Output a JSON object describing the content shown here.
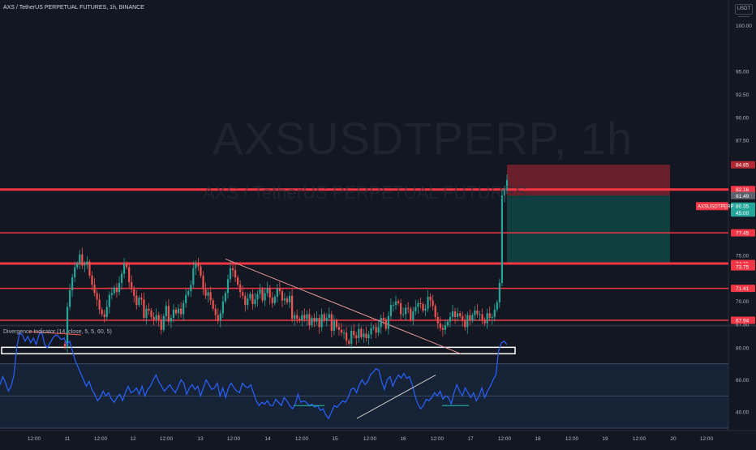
{
  "header": {
    "pair_title": "AXS / TetherUS PERPETUAL FUTURES, 1h, BINANCE",
    "quote_currency": "USDT"
  },
  "watermark": {
    "symbol": "AXSUSDTPERP, 1h",
    "description": "AXS / TetherUS PERPETUAL FUTURES"
  },
  "indicator": {
    "title": "Divergence Indicator (14, close, 5, 5, 60, 5)"
  },
  "symbol_tag": "AXSUSDTPERP",
  "colors": {
    "background": "#131722",
    "up_candle": "#26a69a",
    "down_candle": "#ef5350",
    "resistance_line": "#f23645",
    "trendline": "#ef9a9a",
    "osc_line": "#2962ff",
    "osc_band": "#1e3a5f",
    "stop_zone": "#b22833",
    "target_zone": "#0e5a54",
    "bull_divergence": "#26a69a",
    "bear_divergence": "#ef5350",
    "support_box_border": "#ffffff"
  },
  "chart_data": [
    {
      "type": "candlestick",
      "title": "AXS / TetherUS PERPETUAL FUTURES, 1h, BINANCE",
      "x_ticks": [
        "12:00",
        "11",
        "12:00",
        "12",
        "12:00",
        "13",
        "12:00",
        "14",
        "12:00",
        "15",
        "12:00",
        "16",
        "12:00",
        "17",
        "12:00",
        "18",
        "12:00",
        "19",
        "12:00",
        "20",
        "12:00"
      ],
      "y_ticks": [
        67.5,
        70.0,
        75.0,
        85.0,
        87.5,
        90.0,
        92.5,
        95.0,
        100.0
      ],
      "ylim": [
        67.5,
        101.0
      ],
      "series_open_close": {
        "description": "hourly closes, Jan 10 to Jan 17 12:00",
        "closes": [
          65.0,
          69.4,
          71.2,
          72.6,
          73.7,
          74.1,
          75.1,
          73.9,
          74.0,
          74.3,
          72.8,
          71.8,
          70.9,
          70.2,
          69.1,
          68.6,
          68.3,
          69.4,
          70.7,
          70.9,
          71.5,
          71.0,
          72.0,
          73.0,
          74.1,
          73.7,
          72.1,
          71.3,
          70.6,
          69.6,
          70.4,
          70.2,
          68.2,
          69.2,
          69.0,
          68.3,
          68.0,
          68.5,
          68.0,
          66.9,
          68.4,
          69.5,
          67.8,
          68.2,
          69.1,
          68.7,
          69.2,
          68.6,
          69.8,
          70.7,
          71.1,
          71.8,
          73.6,
          74.1,
          73.8,
          72.8,
          71.3,
          70.6,
          71.0,
          70.1,
          69.2,
          68.5,
          67.9,
          68.7,
          70.0,
          70.9,
          72.4,
          73.6,
          73.4,
          72.6,
          71.8,
          71.0,
          70.6,
          69.6,
          70.3,
          70.8,
          69.7,
          70.2,
          70.8,
          71.3,
          70.1,
          70.9,
          71.4,
          70.4,
          69.8,
          70.5,
          71.4,
          71.1,
          70.1,
          70.3,
          69.9,
          70.6,
          68.1,
          68.5,
          68.1,
          67.9,
          68.5,
          68.1,
          68.6,
          67.4,
          68.2,
          67.8,
          68.2,
          67.2,
          68.6,
          67.9,
          68.2,
          68.6,
          66.8,
          67.9,
          67.2,
          66.9,
          66.6,
          66.6,
          65.7,
          65.4,
          66.8,
          66.3,
          66.0,
          67.0,
          66.1,
          66.5,
          66.0,
          66.4,
          67.1,
          67.2,
          66.6,
          67.2,
          68.2,
          68.0,
          67.0,
          68.4,
          69.6,
          69.6,
          70.0,
          69.8,
          68.6,
          68.6,
          69.3,
          69.2,
          68.0,
          68.9,
          69.4,
          69.8,
          69.7,
          69.0,
          69.2,
          70.5,
          70.1,
          69.5,
          68.3,
          67.6,
          67.1,
          66.9,
          67.4,
          67.8,
          68.3,
          68.9,
          68.3,
          68.7,
          68.4,
          67.9,
          67.2,
          68.5,
          67.9,
          68.5,
          69.0,
          68.6,
          68.6,
          68.0,
          67.6,
          68.7,
          68.2,
          68.3,
          69.1,
          69.9,
          72.0,
          81.5,
          82.2,
          83.2
        ]
      },
      "levels": [
        {
          "name": "resistance",
          "value": 82.16,
          "label": "82.16"
        },
        {
          "name": "level",
          "value": 77.45,
          "label": "77.45"
        },
        {
          "name": "level",
          "value": 74.11,
          "label": "74.11"
        },
        {
          "name": "level",
          "value": 71.41,
          "label": "71.41"
        },
        {
          "name": "level",
          "value": 67.94,
          "label": "67.94"
        }
      ],
      "axis_labels": [
        {
          "value": 84.85,
          "label": "84.85",
          "kind": "stop"
        },
        {
          "value": 82.16,
          "label": "82.16",
          "kind": "resistance"
        },
        {
          "value": 81.49,
          "label": "81.49",
          "kind": "neutral"
        },
        {
          "value": 80.35,
          "label": "80.35",
          "kind": "last"
        },
        {
          "value": 79.6,
          "label": "45:00",
          "kind": "timer"
        },
        {
          "value": 77.45,
          "label": "77.45",
          "kind": "resistance"
        },
        {
          "value": 74.11,
          "label": "74.11",
          "kind": "target"
        },
        {
          "value": 73.75,
          "label": "73.75",
          "kind": "resistance"
        },
        {
          "value": 71.41,
          "label": "71.41",
          "kind": "resistance"
        },
        {
          "value": 67.94,
          "label": "67.94",
          "kind": "resistance"
        }
      ],
      "position": {
        "entry": 81.49,
        "stop": 84.85,
        "target": 74.11
      },
      "support_box": {
        "top": 65.0,
        "bottom": 64.3
      },
      "trendline": {
        "from": {
          "x_index": 0,
          "y": 74.6
        },
        "to": {
          "x_index": 1,
          "y": 64.3
        }
      }
    },
    {
      "type": "line",
      "title": "Divergence Indicator (14, close, 5, 5, 60, 5)",
      "y_ticks": [
        40.0,
        60.0,
        80.0
      ],
      "ylim": [
        29,
        93
      ],
      "band": [
        30,
        70
      ],
      "values": [
        57,
        62,
        58,
        53,
        56,
        63,
        80,
        89,
        88,
        84,
        87,
        83,
        86,
        82,
        88,
        90,
        82,
        80,
        83,
        86,
        88,
        87,
        85,
        86,
        82,
        84,
        78,
        72,
        68,
        64,
        60,
        56,
        59,
        54,
        51,
        47,
        49,
        53,
        50,
        52,
        48,
        46,
        49,
        51,
        47,
        52,
        56,
        52,
        53,
        55,
        51,
        56,
        50,
        54,
        56,
        60,
        63,
        59,
        56,
        53,
        55,
        57,
        54,
        52,
        56,
        60,
        58,
        51,
        55,
        57,
        54,
        56,
        50,
        55,
        60,
        57,
        54,
        55,
        58,
        50,
        55,
        49,
        55,
        58,
        55,
        53,
        52,
        58,
        56,
        55,
        57,
        52,
        47,
        44,
        46,
        45,
        47,
        44,
        44,
        48,
        46,
        44,
        49,
        47,
        44,
        42,
        45,
        51,
        46,
        47,
        46,
        44,
        45,
        43,
        44,
        41,
        42,
        38,
        36,
        40,
        44,
        43,
        45,
        47,
        46,
        49,
        54,
        55,
        52,
        57,
        60,
        57,
        59,
        63,
        65,
        67,
        66,
        59,
        54,
        60,
        62,
        56,
        60,
        63,
        61,
        64,
        61,
        62,
        57,
        50,
        45,
        42,
        44,
        48,
        47,
        49,
        52,
        50,
        53,
        48,
        50,
        49,
        45,
        52,
        57,
        53,
        50,
        55,
        52,
        49,
        52,
        47,
        50,
        55,
        49,
        53,
        56,
        60,
        63,
        78,
        83,
        84,
        82
      ]
    }
  ]
}
